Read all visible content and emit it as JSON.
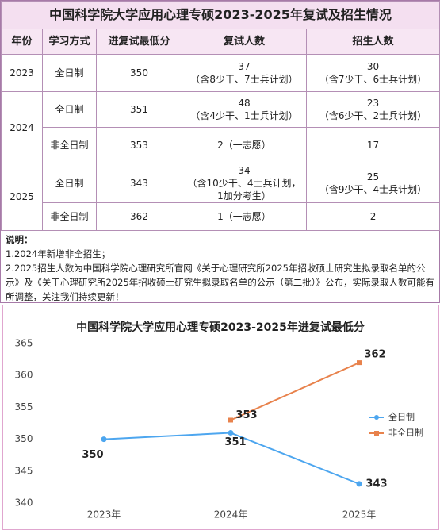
{
  "table": {
    "title": "中国科学院大学应用心理专硕2023-2025年复试及招生情况",
    "header": [
      "年份",
      "学习方式",
      "进复试最低分",
      "复试人数",
      "招生人数"
    ],
    "rows": [
      [
        "2023",
        "全日制",
        "350",
        "37\n（含8少干、7士兵计划）",
        "30\n（含7少干、6士兵计划）"
      ],
      [
        "2024",
        "全日制",
        "351",
        "48\n（含4少干、1士兵计划）",
        "23\n（含6少干、2士兵计划）"
      ],
      [
        "非全日制",
        "353",
        "2（一志愿）",
        "17"
      ],
      [
        "2025",
        "全日制",
        "343",
        "34\n（含10少干、4士兵计划，\n1加分考生）",
        "25\n（含9少干、4士兵计划）"
      ],
      [
        "非全日制",
        "362",
        "1（一志愿）",
        "2"
      ]
    ]
  },
  "notes": {
    "title": "说明：",
    "lines": [
      "1.2024年新增非全招生；",
      "2.2025招生人数为中国科学院心理研究所官网《关于心理研究所2025年招收硕士研究生拟录取名单的公示》及《关于心理研究所2025年招收硕士研究生拟录取名单的公示（第二批）》公布，实际录取人数可能有所调整，关注我们持续更新！"
    ]
  },
  "chart_data": {
    "type": "line",
    "title": "中国科学院大学应用心理专硕2023-2025年进复试最低分",
    "categories": [
      "2023年",
      "2024年",
      "2025年"
    ],
    "series": [
      {
        "name": "全日制",
        "color": "#4da6ef",
        "values": [
          350,
          351,
          343
        ]
      },
      {
        "name": "非全日制",
        "color": "#e8824c",
        "values": [
          null,
          353,
          362
        ]
      }
    ],
    "ylim": [
      340,
      365
    ],
    "yticks": [
      340,
      345,
      350,
      355,
      360,
      365
    ],
    "grid": false,
    "legend": "right"
  }
}
